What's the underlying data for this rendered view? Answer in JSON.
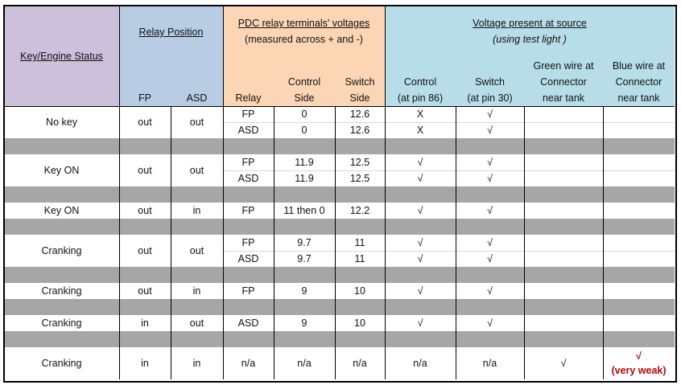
{
  "header": {
    "key_status": "Key/Engine Status",
    "relay_position": "Relay Position",
    "fp": "FP",
    "asd": "ASD",
    "pdc_title": "PDC relay terminals' voltages",
    "pdc_subtitle": "(measured across + and -)",
    "relay": "Relay",
    "control_side": [
      "Control",
      "Side"
    ],
    "switch_side": [
      "Switch",
      "Side"
    ],
    "source_title": "Voltage present at source",
    "source_subtitle": "(using test light )",
    "pin86": [
      "Control",
      "(at pin 86)"
    ],
    "pin30": [
      "Switch",
      "(at pin 30)"
    ],
    "green": [
      "Green wire at",
      "Connector",
      "near tank"
    ],
    "blue": [
      "Blue wire at",
      "Connector",
      "near tank"
    ]
  },
  "groups": [
    {
      "status": "No key",
      "fp": "out",
      "asd": "out",
      "rows": [
        {
          "relay": "FP",
          "control": "0",
          "switch": "12.6",
          "pin86": "X",
          "pin30": "√"
        },
        {
          "relay": "ASD",
          "control": "0",
          "switch": "12.6",
          "pin86": "X",
          "pin30": "√"
        }
      ]
    },
    {
      "status": "Key ON",
      "fp": "out",
      "asd": "out",
      "rows": [
        {
          "relay": "FP",
          "control": "11.9",
          "switch": "12.5",
          "pin86": "√",
          "pin30": "√"
        },
        {
          "relay": "ASD",
          "control": "11.9",
          "switch": "12.5",
          "pin86": "√",
          "pin30": "√"
        }
      ]
    },
    {
      "status": "Key ON",
      "fp": "out",
      "asd": "in",
      "rows": [
        {
          "relay": "FP",
          "control": "11 then 0",
          "switch": "12.2",
          "pin86": "√",
          "pin30": "√"
        }
      ]
    },
    {
      "status": "Cranking",
      "fp": "out",
      "asd": "out",
      "rows": [
        {
          "relay": "FP",
          "control": "9.7",
          "switch": "11",
          "pin86": "√",
          "pin30": "√"
        },
        {
          "relay": "ASD",
          "control": "9.7",
          "switch": "11",
          "pin86": "√",
          "pin30": "√"
        }
      ]
    },
    {
      "status": "Cranking",
      "fp": "out",
      "asd": "in",
      "rows": [
        {
          "relay": "FP",
          "control": "9",
          "switch": "10",
          "pin86": "√",
          "pin30": "√"
        }
      ]
    },
    {
      "status": "Cranking",
      "fp": "in",
      "asd": "out",
      "rows": [
        {
          "relay": "ASD",
          "control": "9",
          "switch": "10",
          "pin86": "√",
          "pin30": "√"
        }
      ]
    },
    {
      "status": "Cranking",
      "fp": "in",
      "asd": "in",
      "rows": [
        {
          "relay": "n/a",
          "control": "n/a",
          "switch": "n/a",
          "pin86": "n/a",
          "pin30": "n/a",
          "green": "√",
          "blue": [
            "√",
            "(very weak)"
          ]
        }
      ]
    }
  ]
}
